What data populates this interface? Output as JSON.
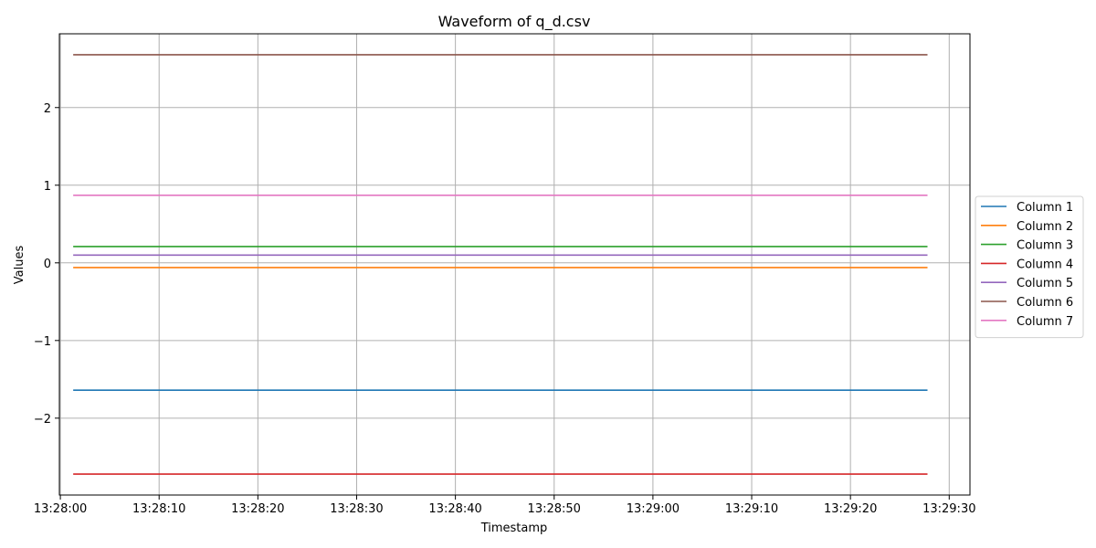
{
  "chart_data": {
    "type": "line",
    "title": "Waveform of q_d.csv",
    "xlabel": "Timestamp",
    "ylabel": "Values",
    "x_tick_labels": [
      "13:28:00",
      "13:28:10",
      "13:28:20",
      "13:28:30",
      "13:28:40",
      "13:28:50",
      "13:29:00",
      "13:29:10",
      "13:29:20",
      "13:29:30"
    ],
    "x_tick_seconds": [
      0,
      10,
      20,
      30,
      40,
      50,
      60,
      70,
      80,
      90
    ],
    "y_ticks": [
      -2,
      -1,
      0,
      1,
      2
    ],
    "y_tick_labels": [
      "−2",
      "−1",
      "0",
      "1",
      "2"
    ],
    "xlim": [
      "13:27:59.9",
      "13:29:32.1"
    ],
    "ylim": [
      -2.99,
      2.95
    ],
    "x_range": [
      "13:28:01.3",
      "13:29:27.8"
    ],
    "grid": true,
    "legend_position": "center-right, outside plot",
    "series": [
      {
        "name": "Column 1",
        "color": "#1f77b4",
        "value": -1.64
      },
      {
        "name": "Column 2",
        "color": "#ff7f0e",
        "value": -0.06
      },
      {
        "name": "Column 3",
        "color": "#2ca02c",
        "value": 0.21
      },
      {
        "name": "Column 4",
        "color": "#d62728",
        "value": -2.72
      },
      {
        "name": "Column 5",
        "color": "#9467bd",
        "value": 0.1
      },
      {
        "name": "Column 6",
        "color": "#8c564b",
        "value": 2.68
      },
      {
        "name": "Column 7",
        "color": "#e377c2",
        "value": 0.87
      }
    ]
  }
}
